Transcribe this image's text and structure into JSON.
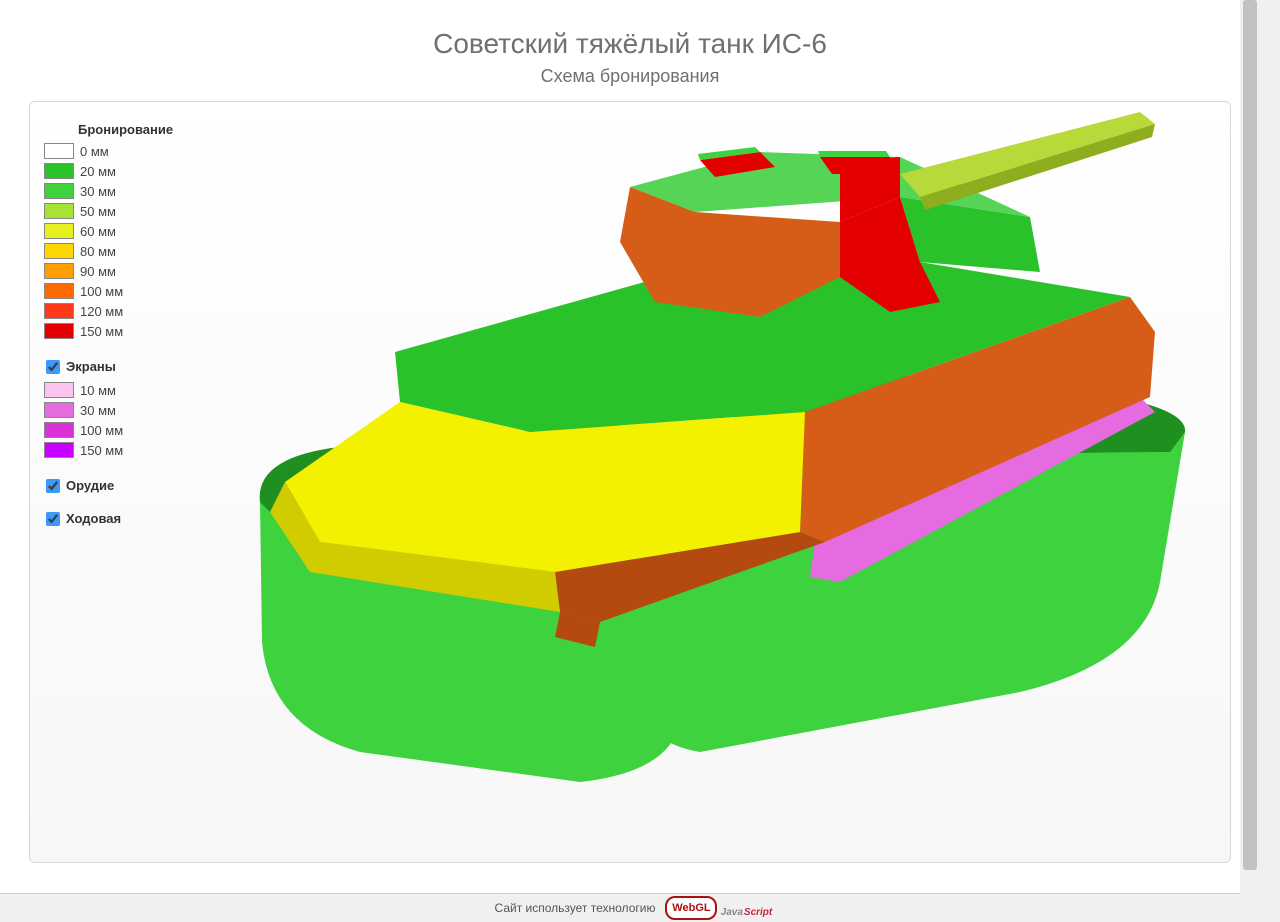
{
  "header": {
    "title": "Советский тяжёлый танк ИС-6",
    "subtitle": "Схема бронирования"
  },
  "legend": {
    "armor_title": "Бронирование",
    "armor": [
      {
        "color": "#ffffff",
        "label": "0 мм"
      },
      {
        "color": "#27c327",
        "label": "20 мм"
      },
      {
        "color": "#3fd23f",
        "label": "30 мм"
      },
      {
        "color": "#a8e234",
        "label": "50 мм"
      },
      {
        "color": "#e6f01e",
        "label": "60 мм"
      },
      {
        "color": "#ffd500",
        "label": "80 мм"
      },
      {
        "color": "#ff9e00",
        "label": "90 мм"
      },
      {
        "color": "#ff6a00",
        "label": "100 мм"
      },
      {
        "color": "#ff3a1a",
        "label": "120 мм"
      },
      {
        "color": "#e40000",
        "label": "150 мм"
      }
    ],
    "screens_title": "Экраны",
    "screens_checked": true,
    "screens": [
      {
        "color": "#fcc3ef",
        "label": "10 мм"
      },
      {
        "color": "#e66be0",
        "label": "30 мм"
      },
      {
        "color": "#d932d9",
        "label": "100 мм"
      },
      {
        "color": "#c800ff",
        "label": "150 мм"
      }
    ],
    "gun_title": "Орудие",
    "gun_checked": true,
    "chassis_title": "Ходовая",
    "chassis_checked": true
  },
  "footer": {
    "text": "Сайт использует технологию",
    "webgl": "WebGL",
    "js": "JavaScript"
  },
  "tank_colors": {
    "track_light": "#3fd23f",
    "track_dark": "#1f8f1f",
    "hull_top": "#2ac22a",
    "hull_front": "#f3f000",
    "hull_front_shadow": "#d0cc00",
    "hull_side": "#d65d18",
    "hull_lower": "#b54a10",
    "skirt": "#e66be0",
    "skirt_top": "#c84ad2",
    "turret_top": "#55d455",
    "turret_front": "#d65d18",
    "turret_side": "#e40000",
    "turret_rear": "#2ac22a",
    "hatch": "#e40000",
    "hatch_top": "#3fd23f",
    "mantlet": "#e40000",
    "gun": "#b7d93a",
    "gun_dark": "#8fae1f"
  }
}
